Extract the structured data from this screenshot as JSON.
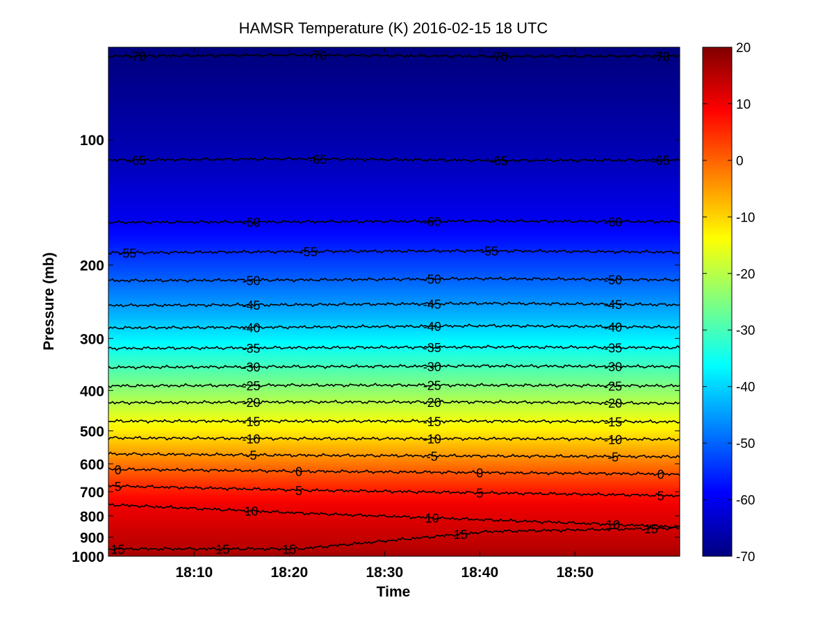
{
  "chart_data": {
    "type": "heatmap",
    "title": "HAMSR  Temperature (K) 2016-02-15 18 UTC",
    "xlabel": "Time",
    "ylabel": "Pressure (mb)",
    "x_range": [
      "18:01",
      "19:01"
    ],
    "y_range_mb": [
      1000,
      60
    ],
    "y_scale": "log",
    "y_reversed": true,
    "x_ticks": [
      "18:10",
      "18:20",
      "18:30",
      "18:40",
      "18:50"
    ],
    "y_ticks": [
      "100",
      "200",
      "300",
      "400",
      "500",
      "600",
      "700",
      "800",
      "900",
      "1000"
    ],
    "colormap": "jet",
    "colorbar": {
      "min": -70,
      "max": 20,
      "ticks": [
        "20",
        "10",
        "0",
        "-10",
        "-20",
        "-30",
        "-40",
        "-50",
        "-60",
        "-70"
      ],
      "placement": "right"
    },
    "contours": [
      {
        "level": -70,
        "label": "-70",
        "p": 63,
        "trend": [
          0,
          -1.5,
          0.5,
          0
        ]
      },
      {
        "level": -65,
        "label": "-65",
        "p": 112,
        "trend": [
          0,
          -2,
          0.5,
          0
        ]
      },
      {
        "level": -60,
        "label": "-60",
        "p": 158,
        "trend": [
          0,
          -1,
          -2,
          -1
        ]
      },
      {
        "level": -55,
        "label": "-55",
        "p": 187,
        "trend": [
          0,
          -2,
          -3,
          -1
        ]
      },
      {
        "level": -50,
        "label": "-50",
        "p": 218,
        "trend": [
          0,
          -1,
          -3,
          -1
        ]
      },
      {
        "level": -45,
        "label": "-45",
        "p": 250,
        "trend": [
          0,
          -1,
          -3,
          -1
        ]
      },
      {
        "level": -40,
        "label": "-40",
        "p": 283,
        "trend": [
          0,
          -1,
          -3,
          -1
        ]
      },
      {
        "level": -35,
        "label": "-35",
        "p": 317,
        "trend": [
          0,
          -1,
          -2,
          -1
        ]
      },
      {
        "level": -30,
        "label": "-30",
        "p": 352,
        "trend": [
          0,
          -1,
          -2,
          -1
        ]
      },
      {
        "level": -25,
        "label": "-25",
        "p": 390,
        "trend": [
          0,
          -1,
          -1,
          0
        ]
      },
      {
        "level": -20,
        "label": "-20",
        "p": 428,
        "trend": [
          0,
          -1,
          -1,
          1
        ]
      },
      {
        "level": -15,
        "label": "-15",
        "p": 474,
        "trend": [
          0,
          0,
          0,
          1
        ]
      },
      {
        "level": -10,
        "label": "-10",
        "p": 520,
        "trend": [
          0,
          1,
          1,
          2
        ]
      },
      {
        "level": -5,
        "label": "-5",
        "p": 568,
        "trend": [
          0,
          2,
          3,
          4
        ]
      },
      {
        "level": 0,
        "label": "0",
        "p": 618,
        "trend": [
          0,
          3,
          5,
          7
        ]
      },
      {
        "level": 5,
        "label": "5",
        "p": 678,
        "trend": [
          0,
          6,
          10,
          14
        ]
      },
      {
        "level": 10,
        "label": "10",
        "p": 752,
        "trend": [
          0,
          12,
          22,
          32
        ]
      },
      {
        "level": 15,
        "label": "15",
        "p": 960,
        "trend": [
          0,
          0,
          -25,
          -30
        ]
      }
    ],
    "contour_labels": [
      {
        "level": -70,
        "times": [
          "18:04",
          "18:23",
          "18:42",
          "18:59"
        ]
      },
      {
        "level": -65,
        "times": [
          "18:04",
          "18:23",
          "18:42",
          "18:59"
        ]
      },
      {
        "level": -60,
        "times": [
          "18:16",
          "18:35",
          "18:54"
        ]
      },
      {
        "level": -55,
        "times": [
          "18:03",
          "18:22",
          "18:41"
        ]
      },
      {
        "level": -50,
        "times": [
          "18:16",
          "18:35",
          "18:54"
        ]
      },
      {
        "level": -45,
        "times": [
          "18:16",
          "18:35",
          "18:54"
        ]
      },
      {
        "level": -40,
        "times": [
          "18:16",
          "18:35",
          "18:54"
        ]
      },
      {
        "level": -35,
        "times": [
          "18:16",
          "18:35",
          "18:54"
        ]
      },
      {
        "level": -30,
        "times": [
          "18:16",
          "18:35",
          "18:54"
        ]
      },
      {
        "level": -25,
        "times": [
          "18:16",
          "18:35",
          "18:54"
        ]
      },
      {
        "level": -20,
        "times": [
          "18:16",
          "18:35",
          "18:54"
        ]
      },
      {
        "level": -15,
        "times": [
          "18:16",
          "18:35",
          "18:54"
        ]
      },
      {
        "level": -10,
        "times": [
          "18:16",
          "18:35",
          "18:54"
        ]
      },
      {
        "level": -5,
        "times": [
          "18:16",
          "18:35",
          "18:54"
        ]
      },
      {
        "level": 0,
        "times": [
          "18:02",
          "18:21",
          "18:40",
          "18:59"
        ]
      },
      {
        "level": 5,
        "times": [
          "18:02",
          "18:21",
          "18:40",
          "18:59"
        ]
      },
      {
        "level": 10,
        "times": [
          "18:16",
          "18:35",
          "18:54"
        ]
      },
      {
        "level": 15,
        "times": [
          "18:02",
          "18:13",
          "18:20",
          "18:38",
          "18:58"
        ]
      }
    ]
  }
}
